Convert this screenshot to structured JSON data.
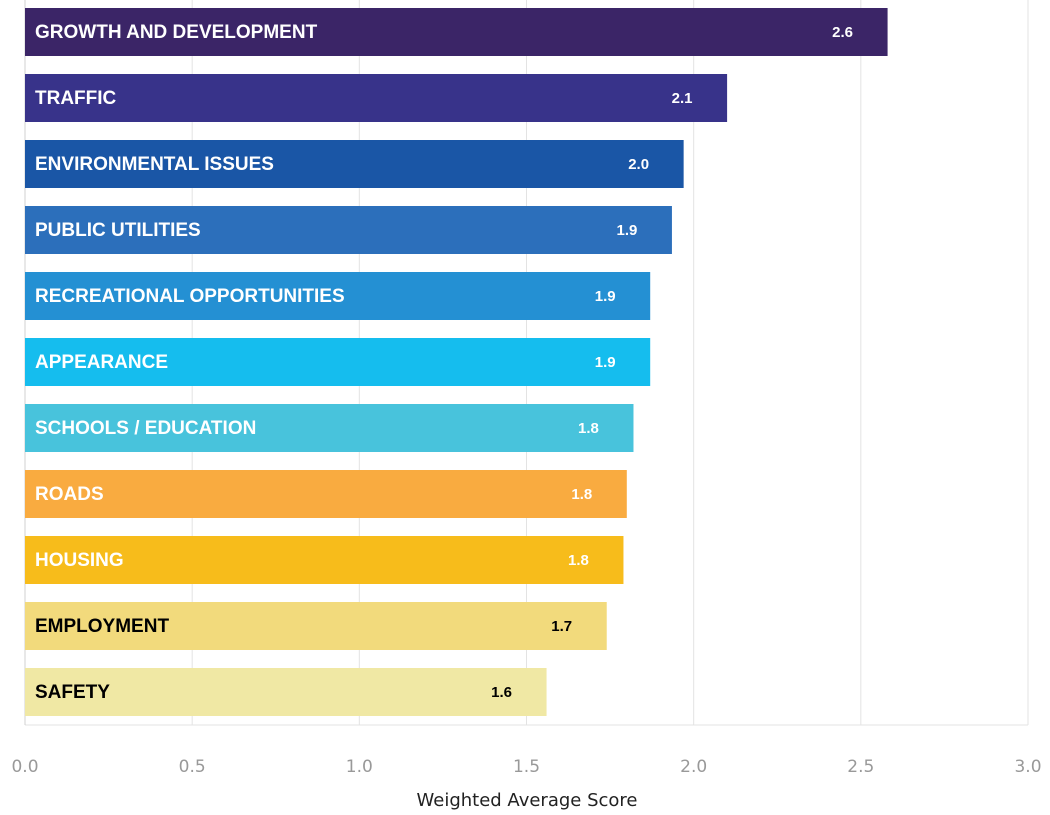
{
  "chart_data": {
    "type": "hbar",
    "categories": [
      "GROWTH AND DEVELOPMENT",
      "TRAFFIC",
      "ENVIRONMENTAL ISSUES",
      "PUBLIC UTILITIES",
      "RECREATIONAL OPPORTUNITIES",
      "APPEARANCE",
      "SCHOOLS / EDUCATION",
      "ROADS",
      "HOUSING",
      "EMPLOYMENT",
      "SAFETY"
    ],
    "values": [
      2.58,
      2.1,
      1.97,
      1.935,
      1.87,
      1.87,
      1.82,
      1.8,
      1.79,
      1.74,
      1.56
    ],
    "value_labels": [
      "2.6",
      "2.1",
      "2.0",
      "1.9",
      "1.9",
      "1.9",
      "1.8",
      "1.8",
      "1.8",
      "1.7",
      "1.6"
    ],
    "colors": [
      "#3b2567",
      "#38338a",
      "#1a56a6",
      "#2c6fbb",
      "#2490d3",
      "#15bdee",
      "#48c3dc",
      "#f9ab40",
      "#f7bc1b",
      "#f2da7c",
      "#f0e8a4"
    ],
    "label_colors": [
      "#ffffff",
      "#ffffff",
      "#ffffff",
      "#ffffff",
      "#ffffff",
      "#ffffff",
      "#ffffff",
      "#ffffff",
      "#ffffff",
      "#000000",
      "#000000"
    ],
    "xlabel": "Weighted Average Score",
    "xlim": [
      0,
      3
    ],
    "xticks": [
      {
        "value": 0,
        "label": "0.0"
      },
      0.5,
      {
        "value": 1,
        "label": "1.0"
      },
      1.5,
      {
        "value": 2,
        "label": "2.0"
      },
      2.5,
      {
        "value": 3,
        "label": "3.0"
      }
    ],
    "grid": true
  }
}
